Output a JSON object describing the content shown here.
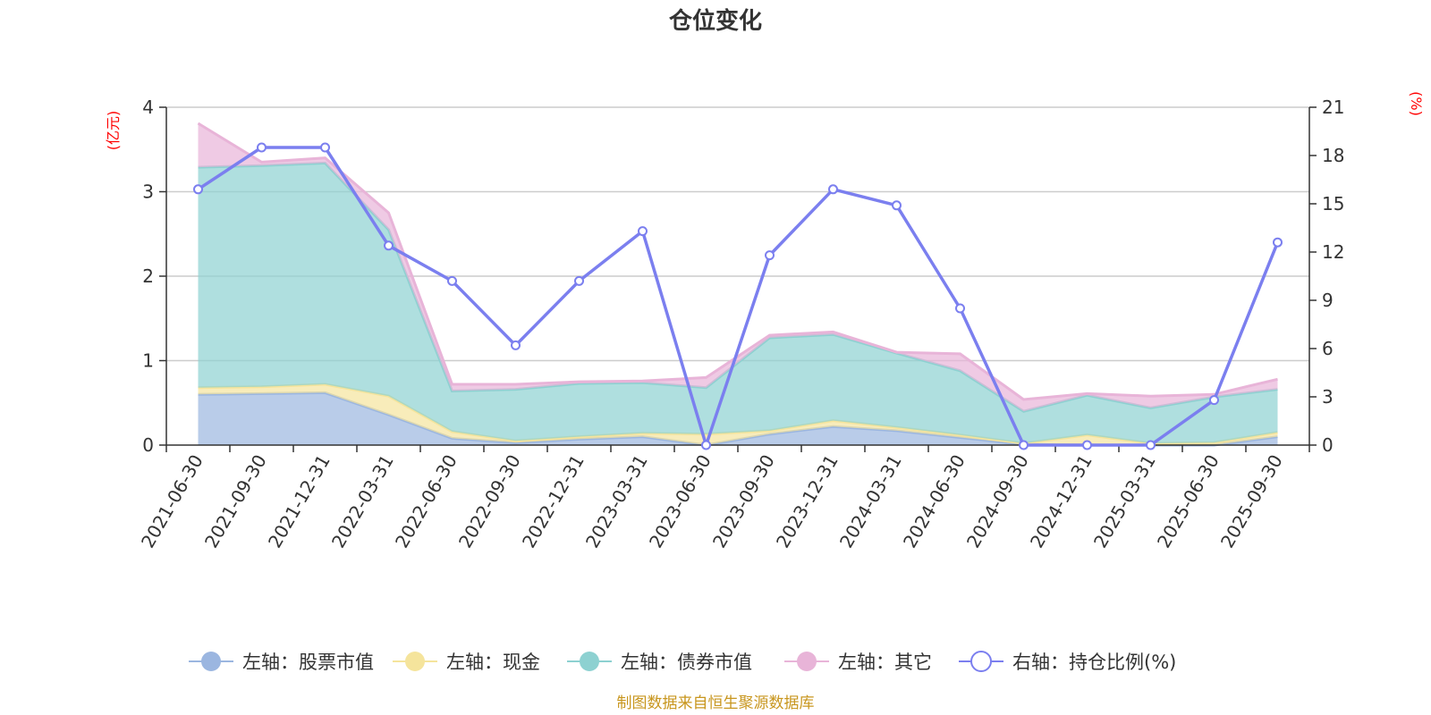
{
  "chart_data": {
    "type": "area",
    "title": "仓位变化",
    "left_axis_unit": "(亿元)",
    "right_axis_unit": "(%)",
    "left_ylim": [
      0,
      4
    ],
    "left_ticks": [
      0,
      1,
      2,
      3,
      4
    ],
    "right_ylim": [
      0,
      21
    ],
    "right_ticks": [
      0,
      3,
      6,
      9,
      12,
      15,
      18,
      21
    ],
    "categories": [
      "2021-06-30",
      "2021-09-30",
      "2021-12-31",
      "2022-03-31",
      "2022-06-30",
      "2022-09-30",
      "2022-12-31",
      "2023-03-31",
      "2023-06-30",
      "2023-09-30",
      "2023-12-31",
      "2024-03-31",
      "2024-06-30",
      "2024-09-30",
      "2024-12-31",
      "2025-03-31",
      "2025-06-30",
      "2025-09-30"
    ],
    "stacked_series": [
      {
        "name": "左轴：股票市值",
        "color": "#9bb6e0",
        "values": [
          0.6,
          0.61,
          0.62,
          0.36,
          0.08,
          0.03,
          0.07,
          0.1,
          0.0,
          0.13,
          0.22,
          0.17,
          0.09,
          0.01,
          0.0,
          0.0,
          0.0,
          0.1
        ]
      },
      {
        "name": "左轴：现金",
        "color": "#f5e49c",
        "values": [
          0.08,
          0.08,
          0.1,
          0.22,
          0.08,
          0.02,
          0.03,
          0.04,
          0.13,
          0.04,
          0.07,
          0.04,
          0.03,
          0.01,
          0.12,
          0.02,
          0.03,
          0.05
        ]
      },
      {
        "name": "左轴：债券市值",
        "color": "#8dd1d1",
        "values": [
          2.61,
          2.62,
          2.62,
          1.97,
          0.48,
          0.61,
          0.63,
          0.6,
          0.55,
          1.1,
          1.02,
          0.88,
          0.76,
          0.38,
          0.47,
          0.42,
          0.54,
          0.51
        ]
      },
      {
        "name": "左轴：其它",
        "color": "#e8b4d8",
        "values": [
          0.52,
          0.04,
          0.06,
          0.2,
          0.08,
          0.06,
          0.02,
          0.02,
          0.12,
          0.03,
          0.03,
          0.01,
          0.2,
          0.14,
          0.02,
          0.14,
          0.03,
          0.12
        ]
      }
    ],
    "line_series": {
      "name": "右轴：持仓比例(%)",
      "color": "#7b7fef",
      "values": [
        15.9,
        18.5,
        18.5,
        12.4,
        10.2,
        6.2,
        10.2,
        13.3,
        0.0,
        11.8,
        15.9,
        14.9,
        8.5,
        0.0,
        0.0,
        0.0,
        2.8,
        12.6
      ]
    },
    "legend_position": "bottom",
    "grid": true
  },
  "source_note": "制图数据来自恒生聚源数据库"
}
